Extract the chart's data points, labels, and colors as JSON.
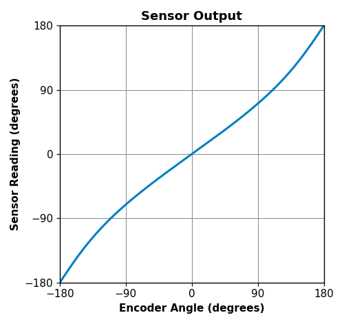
{
  "title": "Sensor Output",
  "xlabel": "Encoder Angle (degrees)",
  "ylabel": "Sensor Reading (degrees)",
  "xlim": [
    -180,
    180
  ],
  "ylim": [
    -180,
    180
  ],
  "xticks": [
    -180,
    -90,
    0,
    90,
    180
  ],
  "yticks": [
    -180,
    -90,
    0,
    90,
    180
  ],
  "line_color": "#0080c0",
  "line_width": 2.2,
  "title_fontsize": 13,
  "label_fontsize": 11,
  "tick_fontsize": 11,
  "grid": true,
  "background_color": "#ffffff",
  "curve_type": "side_shaft",
  "eccentricity": 0.5
}
